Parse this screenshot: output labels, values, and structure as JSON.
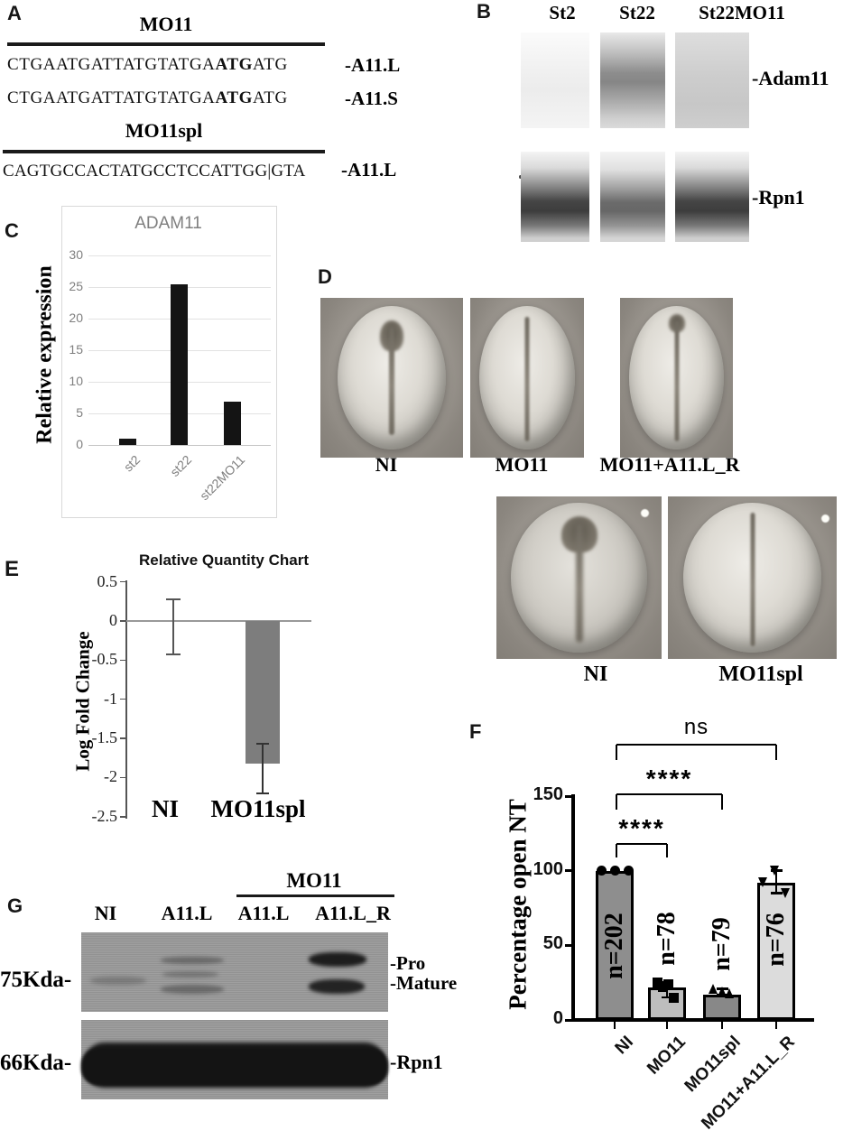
{
  "panels": {
    "A": {
      "label": "A",
      "groups": [
        {
          "title": "MO11",
          "rows": [
            {
              "pre": "CTGAATGATTATGTATGA",
              "bold": "ATG",
              "post": "ATG",
              "label": "-A11.L"
            },
            {
              "pre": "CTGAATGATTATGTATGA",
              "bold": "ATG",
              "post": "ATG",
              "label": "-A11.S"
            }
          ]
        },
        {
          "title": "MO11spl",
          "rows": [
            {
              "pre": "CAGTGCCACTATGCCTCCATTGG|GTA",
              "bold": "",
              "post": "",
              "label": "-A11.L"
            }
          ]
        }
      ]
    },
    "B": {
      "label": "B",
      "lanes": [
        "St2",
        "St22",
        "St22MO11"
      ],
      "band_labels": [
        "-Adam11",
        "-Rpn1"
      ]
    },
    "C": {
      "label": "C"
    },
    "D": {
      "label": "D",
      "row1_labels": [
        "NI",
        "MO11",
        "MO11+A11.L_R"
      ],
      "row2_labels": [
        "NI",
        "MO11spl"
      ]
    },
    "E": {
      "label": "E"
    },
    "F": {
      "label": "F"
    },
    "G": {
      "label": "G",
      "group_label": "MO11",
      "lanes": [
        "NI",
        "A11.L",
        "A11.L",
        "A11.L_R"
      ],
      "size_markers": [
        "75Kda-",
        "66Kda-"
      ],
      "band_labels": [
        "-Pro",
        "-Mature",
        "-Rpn1"
      ]
    }
  },
  "chart_data": [
    {
      "id": "C",
      "type": "bar",
      "title": "ADAM11",
      "ylabel": "Relative expression",
      "categories": [
        "st2",
        "st22",
        "st22MO11"
      ],
      "values": [
        1,
        25.5,
        6.9
      ],
      "yticks": [
        "0",
        "5",
        "10",
        "15",
        "20",
        "25",
        "30"
      ],
      "ytick_values": [
        0,
        5,
        10,
        15,
        20,
        25,
        30
      ],
      "ylim": [
        0,
        30
      ],
      "bar_color": "#141414",
      "grid": true,
      "title_color": "#7f7f7f"
    },
    {
      "id": "E",
      "type": "bar",
      "title": "Relative Quantity Chart",
      "ylabel": "Log Fold Change",
      "categories": [
        "NI",
        "MO11spl"
      ],
      "values": [
        0,
        -1.82
      ],
      "error_bars": [
        {
          "high": 0.28,
          "low": -0.43
        },
        {
          "high": -1.57,
          "low": -2.2
        }
      ],
      "yticks": [
        "0.5",
        "0",
        "-0.5",
        "-1",
        "-1.5",
        "-2",
        "-2.5"
      ],
      "ytick_values": [
        0.5,
        0,
        -0.5,
        -1,
        -1.5,
        -2,
        -2.5
      ],
      "ylim": [
        -2.5,
        0.5
      ],
      "bar_color": "#7d7d7d"
    },
    {
      "id": "F",
      "type": "bar",
      "ylabel": "Percentage open NT",
      "categories": [
        "NI",
        "MO11",
        "MO11spl",
        "MO11+A11.L_R"
      ],
      "values": [
        100,
        22,
        17,
        92
      ],
      "n_labels": [
        "n=202",
        "n=78",
        "n=79",
        "n=76"
      ],
      "bar_colors": [
        "#8e8e8e",
        "#bdbdbd",
        "#888888",
        "#dcdcdc"
      ],
      "marker_shapes": [
        "circle",
        "square",
        "triangle-up",
        "triangle-down"
      ],
      "points": [
        [
          100,
          100,
          100
        ],
        [
          25,
          24,
          22,
          15
        ],
        [
          21,
          19,
          18
        ],
        [
          100,
          92,
          85
        ]
      ],
      "error_bars": [
        null,
        {
          "high": 25,
          "low": 15
        },
        {
          "high": 21,
          "low": 17
        },
        {
          "high": 100,
          "low": 85
        }
      ],
      "yticks": [
        "0",
        "50",
        "100",
        "150"
      ],
      "ytick_values": [
        0,
        50,
        100,
        150
      ],
      "ylim": [
        0,
        150
      ],
      "significance": [
        {
          "from": 0,
          "to": 1,
          "label": "****"
        },
        {
          "from": 0,
          "to": 2,
          "label": "****"
        },
        {
          "from": 0,
          "to": 3,
          "label": "ns"
        }
      ]
    }
  ]
}
